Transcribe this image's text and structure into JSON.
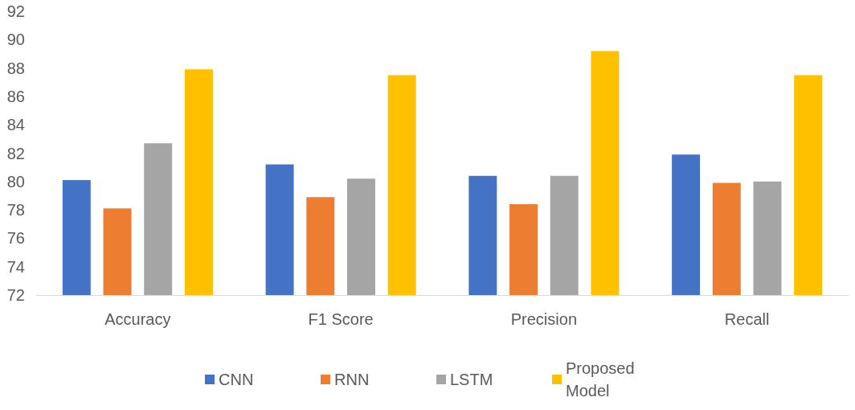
{
  "chart_data": {
    "type": "bar",
    "categories": [
      "Accuracy",
      "F1 Score",
      "Precision",
      "Recall"
    ],
    "series": [
      {
        "name": "CNN",
        "color": "#4472c4",
        "values": [
          80.1,
          81.2,
          80.4,
          81.9
        ]
      },
      {
        "name": "RNN",
        "color": "#ed7d31",
        "values": [
          78.1,
          78.9,
          78.4,
          79.9
        ]
      },
      {
        "name": "LSTM",
        "color": "#a5a5a5",
        "values": [
          82.7,
          80.2,
          80.4,
          80.0
        ]
      },
      {
        "name": "Proposed Model",
        "color": "#ffc000",
        "values": [
          87.9,
          87.5,
          89.2,
          87.5
        ]
      }
    ],
    "ylim": [
      72,
      92
    ],
    "yticks": [
      72,
      74,
      76,
      78,
      80,
      82,
      84,
      86,
      88,
      90,
      92
    ],
    "grid": false,
    "legend": "bottom"
  }
}
